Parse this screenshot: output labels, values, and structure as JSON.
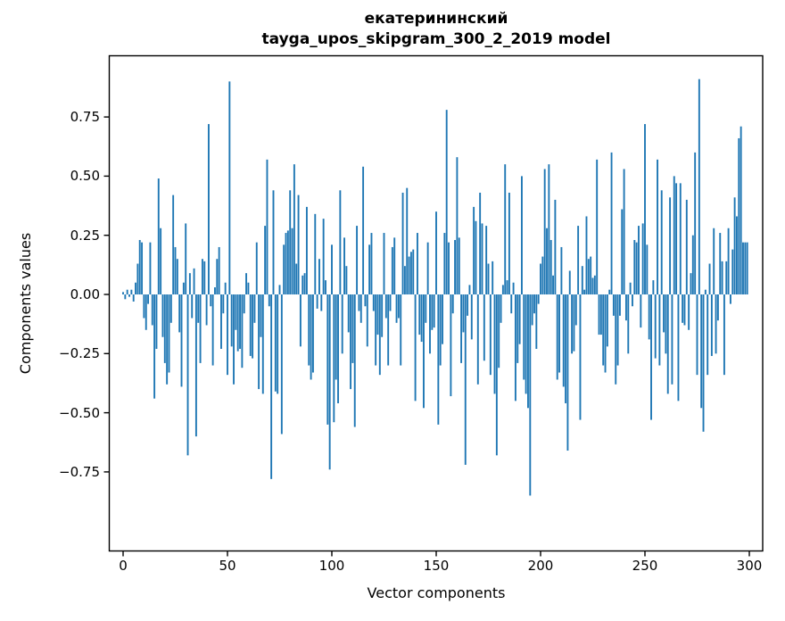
{
  "header": {
    "title_line1": "екатерининский",
    "title_line2": "tayga_upos_skipgram_300_2_2019 model"
  },
  "chart_data": {
    "type": "bar",
    "title": "екатерининский\ntayga_upos_skipgram_300_2_2019 model",
    "xlabel": "Vector components",
    "ylabel": "Components values",
    "legend": null,
    "grid": false,
    "bar_color": "#1f77b4",
    "axis_color": "#000000",
    "xlim": [
      -6.5,
      306.5
    ],
    "ylim": [
      -1.08,
      1.01
    ],
    "x_ticks": [
      {
        "value": 0,
        "label": "0"
      },
      {
        "value": 50,
        "label": "50"
      },
      {
        "value": 100,
        "label": "100"
      },
      {
        "value": 150,
        "label": "150"
      },
      {
        "value": 200,
        "label": "200"
      },
      {
        "value": 250,
        "label": "250"
      },
      {
        "value": 300,
        "label": "300"
      }
    ],
    "y_ticks": [
      {
        "value": 0.75,
        "label": "0.75"
      },
      {
        "value": 0.5,
        "label": "0.50"
      },
      {
        "value": 0.25,
        "label": "0.25"
      },
      {
        "value": 0.0,
        "label": "0.00"
      },
      {
        "value": -0.25,
        "label": "−0.25"
      },
      {
        "value": -0.5,
        "label": "−0.50"
      },
      {
        "value": -0.75,
        "label": "−0.75"
      }
    ],
    "n_components": 300,
    "categories_note": "x = vector component index 0..299",
    "values": [
      0.01,
      -0.02,
      0.02,
      -0.01,
      0.02,
      -0.03,
      0.05,
      0.13,
      0.23,
      0.22,
      -0.1,
      -0.15,
      -0.04,
      0.22,
      -0.13,
      -0.44,
      -0.23,
      0.49,
      0.28,
      -0.18,
      -0.29,
      -0.38,
      -0.33,
      -0.12,
      0.42,
      0.2,
      0.15,
      -0.16,
      -0.39,
      0.05,
      0.3,
      -0.68,
      0.09,
      -0.1,
      0.11,
      -0.6,
      -0.12,
      -0.29,
      0.15,
      0.14,
      -0.13,
      0.72,
      -0.05,
      -0.3,
      0.03,
      0.15,
      0.2,
      -0.23,
      -0.08,
      0.05,
      -0.34,
      0.9,
      -0.22,
      -0.38,
      -0.15,
      -0.24,
      -0.23,
      -0.31,
      -0.08,
      0.09,
      0.05,
      -0.26,
      -0.27,
      -0.12,
      0.22,
      -0.4,
      -0.18,
      -0.42,
      0.29,
      0.57,
      -0.05,
      -0.78,
      0.44,
      -0.41,
      -0.42,
      0.04,
      -0.59,
      0.21,
      0.26,
      0.27,
      0.44,
      0.28,
      0.55,
      0.13,
      0.42,
      -0.22,
      0.08,
      0.09,
      0.37,
      -0.3,
      -0.36,
      -0.33,
      0.34,
      -0.06,
      0.15,
      -0.07,
      0.32,
      0.06,
      -0.55,
      -0.74,
      0.21,
      -0.54,
      -0.36,
      -0.46,
      0.44,
      -0.25,
      0.24,
      0.12,
      -0.16,
      -0.4,
      -0.29,
      -0.56,
      0.29,
      -0.07,
      -0.12,
      0.54,
      -0.05,
      -0.22,
      0.21,
      0.26,
      -0.07,
      -0.3,
      -0.17,
      -0.34,
      -0.18,
      0.26,
      -0.1,
      -0.3,
      -0.07,
      0.2,
      0.24,
      -0.12,
      -0.1,
      -0.3,
      0.43,
      0.12,
      0.45,
      0.16,
      0.18,
      0.19,
      -0.45,
      0.26,
      -0.17,
      -0.2,
      -0.48,
      -0.12,
      0.22,
      -0.25,
      -0.15,
      -0.14,
      0.35,
      -0.55,
      -0.3,
      -0.21,
      0.26,
      0.78,
      0.22,
      -0.43,
      -0.08,
      0.23,
      0.58,
      0.24,
      -0.29,
      -0.16,
      -0.72,
      -0.09,
      0.04,
      -0.19,
      0.37,
      0.31,
      -0.38,
      0.43,
      0.3,
      -0.28,
      0.29,
      0.13,
      -0.34,
      0.14,
      -0.42,
      -0.68,
      -0.31,
      -0.12,
      0.04,
      0.55,
      0.06,
      0.43,
      -0.08,
      0.05,
      -0.45,
      -0.29,
      -0.21,
      0.5,
      -0.36,
      -0.42,
      -0.48,
      -0.85,
      -0.13,
      -0.08,
      -0.23,
      -0.04,
      0.13,
      0.16,
      0.53,
      0.28,
      0.55,
      0.23,
      0.08,
      0.4,
      -0.36,
      -0.33,
      0.2,
      -0.39,
      -0.46,
      -0.66,
      0.1,
      -0.25,
      -0.24,
      -0.13,
      0.29,
      -0.53,
      0.12,
      0.02,
      0.33,
      0.15,
      0.16,
      0.07,
      0.08,
      0.57,
      -0.17,
      -0.17,
      -0.3,
      -0.33,
      -0.22,
      0.02,
      0.6,
      -0.09,
      -0.38,
      -0.3,
      -0.09,
      0.36,
      0.53,
      -0.11,
      -0.25,
      0.05,
      -0.05,
      0.23,
      0.22,
      0.29,
      -0.14,
      0.3,
      0.72,
      0.21,
      -0.19,
      -0.53,
      0.06,
      -0.27,
      0.57,
      -0.3,
      0.44,
      -0.16,
      -0.25,
      -0.42,
      0.41,
      -0.38,
      0.5,
      0.47,
      -0.45,
      0.47,
      -0.12,
      -0.13,
      0.4,
      -0.15,
      0.09,
      0.25,
      0.6,
      -0.34,
      0.91,
      -0.48,
      -0.58,
      0.02,
      -0.34,
      0.13,
      -0.26,
      0.28,
      -0.25,
      -0.11,
      0.26,
      0.14,
      -0.34,
      0.14,
      0.28,
      -0.04,
      0.19,
      0.41,
      0.33,
      0.66,
      0.71,
      0.22,
      0.22,
      0.22
    ]
  }
}
